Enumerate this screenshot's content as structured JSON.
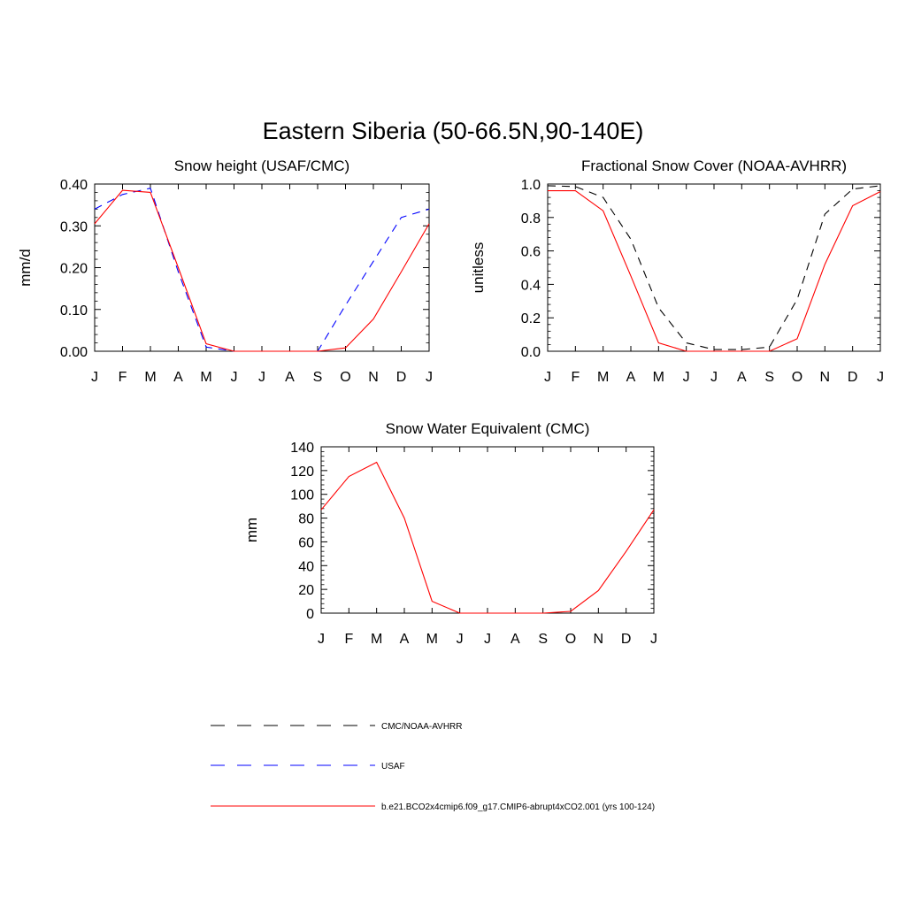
{
  "page_title": "Eastern Siberia (50-66.5N,90-140E)",
  "legend": {
    "items": [
      {
        "label": "CMC/NOAA-AVHRR",
        "color": "#000000",
        "dash": "dashed"
      },
      {
        "label": "USAF",
        "color": "#0000ff",
        "dash": "dashed"
      },
      {
        "label": "b.e21.BCO2x4cmip6.f09_g17.CMIP6-abrupt4xCO2.001 (yrs 100-124)",
        "color": "#ff0000",
        "dash": "solid"
      }
    ]
  },
  "chart_data": [
    {
      "type": "line",
      "title": "Snow height (USAF/CMC)",
      "xlabel": "",
      "ylabel": "mm/d",
      "categories": [
        "J",
        "F",
        "M",
        "A",
        "M",
        "J",
        "J",
        "A",
        "S",
        "O",
        "N",
        "D",
        "J"
      ],
      "ylim": [
        0,
        0.4
      ],
      "yticks": [
        0,
        0.1,
        0.2,
        0.3,
        0.4
      ],
      "yticklabels": [
        "0.00",
        "0.10",
        "0.20",
        "0.30",
        "0.40"
      ],
      "series": [
        {
          "name": "CMC/NOAA-AVHRR",
          "color": "#000000",
          "dash": "dashed",
          "values": [
            0,
            0,
            0,
            0,
            0,
            0,
            0,
            0,
            0,
            0,
            0,
            0,
            0
          ]
        },
        {
          "name": "USAF",
          "color": "#0000ff",
          "dash": "dashed",
          "values": [
            0.34,
            0.375,
            0.39,
            0.19,
            0.01,
            0,
            0,
            0,
            0,
            0.11,
            0.215,
            0.32,
            0.34
          ]
        },
        {
          "name": "b.e21.BCO2x4cmip6.f09_g17.CMIP6-abrupt4xCO2.001 (yrs 100-124)",
          "color": "#ff0000",
          "dash": "solid",
          "values": [
            0.305,
            0.385,
            0.38,
            0.2,
            0.018,
            0,
            0,
            0,
            0,
            0.008,
            0.077,
            0.19,
            0.305
          ]
        }
      ]
    },
    {
      "type": "line",
      "title": "Fractional Snow Cover (NOAA-AVHRR)",
      "xlabel": "",
      "ylabel": "unitless",
      "categories": [
        "J",
        "F",
        "M",
        "A",
        "M",
        "J",
        "J",
        "A",
        "S",
        "O",
        "N",
        "D",
        "J"
      ],
      "ylim": [
        0,
        1.0
      ],
      "yticks": [
        0,
        0.2,
        0.4,
        0.6,
        0.8,
        1.0
      ],
      "yticklabels": [
        "0.0",
        "0.2",
        "0.4",
        "0.6",
        "0.8",
        "1.0"
      ],
      "series": [
        {
          "name": "CMC/NOAA-AVHRR",
          "color": "#000000",
          "dash": "dashed",
          "values": [
            0.99,
            0.985,
            0.92,
            0.67,
            0.26,
            0.05,
            0.01,
            0.01,
            0.025,
            0.31,
            0.82,
            0.97,
            0.99
          ]
        },
        {
          "name": "b.e21.BCO2x4cmip6.f09_g17.CMIP6-abrupt4xCO2.001 (yrs 100-124)",
          "color": "#ff0000",
          "dash": "solid",
          "values": [
            0.96,
            0.96,
            0.84,
            0.45,
            0.05,
            0,
            0,
            0,
            0,
            0.075,
            0.52,
            0.87,
            0.955
          ]
        }
      ]
    },
    {
      "type": "line",
      "title": "Snow Water Equivalent (CMC)",
      "xlabel": "",
      "ylabel": "mm",
      "categories": [
        "J",
        "F",
        "M",
        "A",
        "M",
        "J",
        "J",
        "A",
        "S",
        "O",
        "N",
        "D",
        "J"
      ],
      "ylim": [
        0,
        140
      ],
      "yticks": [
        0,
        20,
        40,
        60,
        80,
        100,
        120,
        140
      ],
      "yticklabels": [
        "0",
        "20",
        "40",
        "60",
        "80",
        "100",
        "120",
        "140"
      ],
      "series": [
        {
          "name": "CMC/NOAA-AVHRR",
          "color": "#000000",
          "dash": "dashed",
          "values": [
            0,
            0,
            0,
            0,
            0,
            0,
            0,
            0,
            0,
            0,
            0,
            0,
            0
          ]
        },
        {
          "name": "b.e21.BCO2x4cmip6.f09_g17.CMIP6-abrupt4xCO2.001 (yrs 100-124)",
          "color": "#ff0000",
          "dash": "solid",
          "values": [
            87,
            115,
            127,
            80,
            10,
            0,
            0,
            0,
            0,
            1.5,
            19,
            52,
            87
          ]
        }
      ]
    }
  ]
}
